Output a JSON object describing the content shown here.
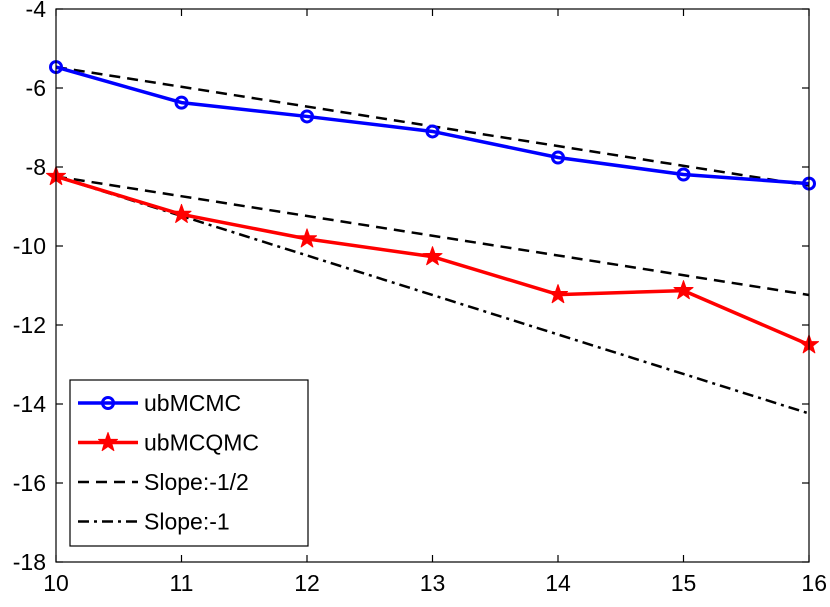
{
  "chart_data": {
    "type": "line",
    "title": "",
    "xlabel": "",
    "ylabel": "",
    "xlim": [
      10,
      16
    ],
    "ylim": [
      -18,
      -4
    ],
    "x_ticks": [
      10,
      11,
      12,
      13,
      14,
      15,
      16
    ],
    "y_ticks": [
      -18,
      -16,
      -14,
      -12,
      -10,
      -8,
      -6,
      -4
    ],
    "x_tick_labels": [
      "10",
      "11",
      "12",
      "13",
      "14",
      "15",
      "16"
    ],
    "y_tick_labels": [
      "-18",
      "-16",
      "-14",
      "-12",
      "-10",
      "-8",
      "-6",
      "-4"
    ],
    "grid": false,
    "legend_position": "bottom-left",
    "x": [
      10,
      11,
      12,
      13,
      14,
      15,
      16
    ],
    "series": [
      {
        "name": "ubMCMC",
        "color": "#0000ff",
        "marker": "circle",
        "style": "solid",
        "values": [
          -5.47,
          -6.37,
          -6.72,
          -7.1,
          -7.76,
          -8.19,
          -8.42
        ]
      },
      {
        "name": "ubMCQMC",
        "color": "#ff0000",
        "marker": "star",
        "style": "solid",
        "values": [
          -8.24,
          -9.2,
          -9.82,
          -10.27,
          -11.23,
          -11.13,
          -12.5
        ]
      },
      {
        "name": "Slope:-1/2",
        "color": "#000000",
        "marker": "none",
        "style": "dashed",
        "segments": [
          {
            "x": [
              10,
              16
            ],
            "y": [
              -5.47,
              -8.47
            ]
          },
          {
            "x": [
              10,
              16
            ],
            "y": [
              -8.24,
              -11.24
            ]
          }
        ]
      },
      {
        "name": "Slope:-1",
        "color": "#000000",
        "marker": "none",
        "style": "dashdot",
        "segments": [
          {
            "x": [
              10,
              16
            ],
            "y": [
              -8.24,
              -14.24
            ]
          }
        ]
      }
    ]
  }
}
